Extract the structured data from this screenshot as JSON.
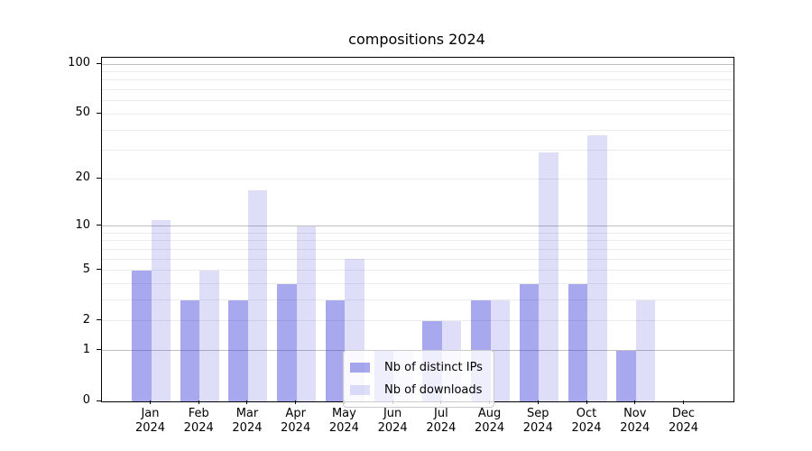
{
  "chart_data": {
    "type": "bar",
    "title": "compositions 2024",
    "categories": [
      "Jan",
      "Feb",
      "Mar",
      "Apr",
      "May",
      "Jun",
      "Jul",
      "Aug",
      "Sep",
      "Oct",
      "Nov",
      "Dec"
    ],
    "category_year": "2024",
    "series": [
      {
        "name": "Nb of distinct IPs",
        "color": "rgba(47,47,215,0.42)",
        "color_on_white": "#a8a8ee",
        "values": [
          5,
          3,
          3,
          4,
          3,
          1,
          2,
          3,
          4,
          4,
          1,
          0
        ]
      },
      {
        "name": "Nb of downloads",
        "color": "rgba(47,47,215,0.16)",
        "color_on_white": "#dedef9",
        "values": [
          11,
          5,
          17,
          10,
          6,
          1,
          2,
          3,
          29,
          37,
          3,
          0
        ]
      }
    ],
    "y_axis": {
      "scale": "log1p",
      "tick_labels": [
        0,
        1,
        2,
        5,
        10,
        20,
        50,
        100
      ],
      "major_gridlines": [
        1,
        10,
        100
      ],
      "minor_gridlines": [
        2,
        3,
        4,
        5,
        6,
        7,
        8,
        9,
        20,
        30,
        40,
        50,
        60,
        70,
        80,
        90
      ],
      "ylim": [
        0,
        110
      ]
    },
    "legend": {
      "position": "lower center"
    },
    "colors": {
      "major_grid": "#bfbfbf",
      "minor_grid": "#ebebeb",
      "spine": "#000000",
      "background": "#ffffff"
    }
  }
}
